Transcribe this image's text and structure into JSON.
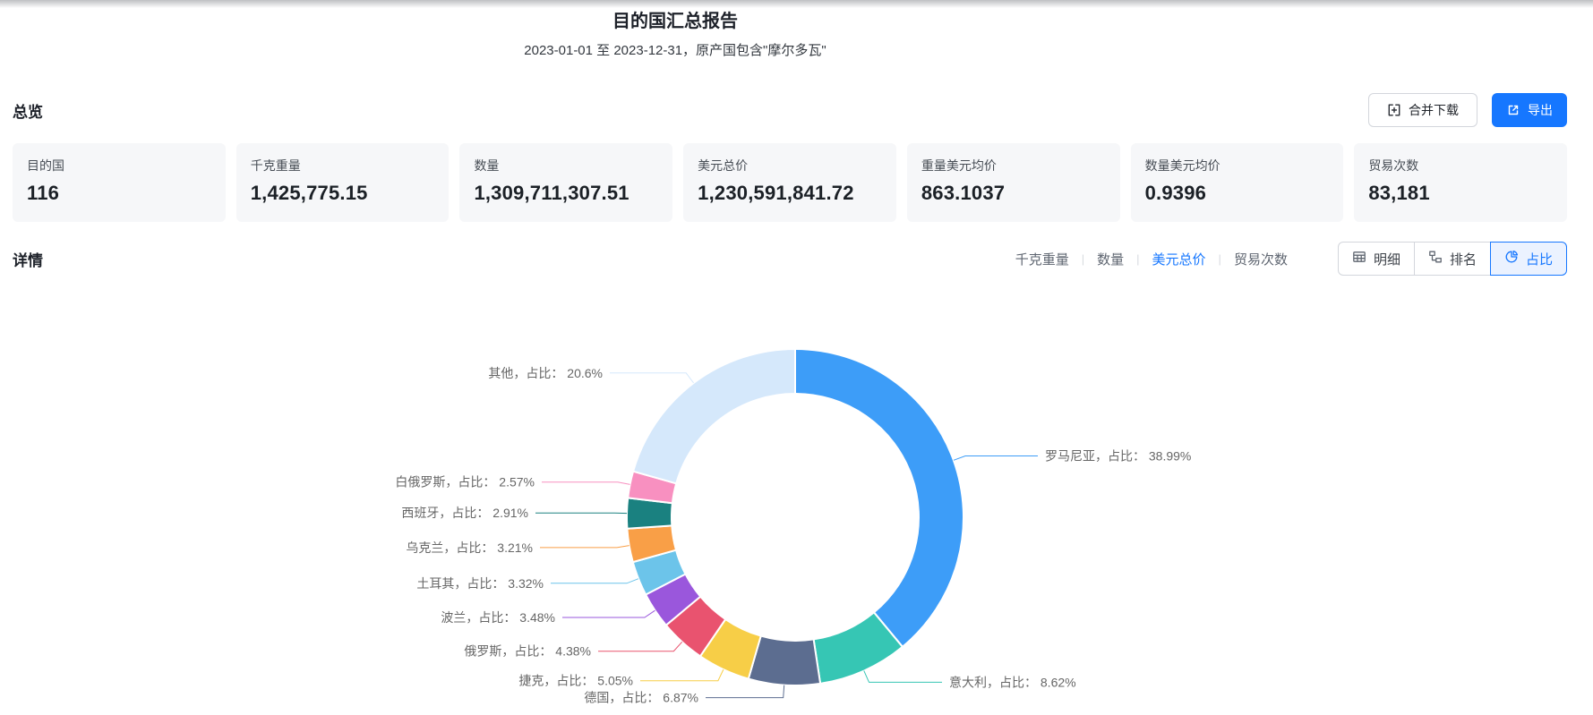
{
  "page": {
    "title": "目的国汇总报告",
    "subtitle": "2023-01-01 至 2023-12-31，原产国包含\"摩尔多瓦\""
  },
  "overview": {
    "heading": "总览",
    "buttons": {
      "merge_download": "合并下载",
      "export": "导出"
    },
    "stats": [
      {
        "label": "目的国",
        "value": "116"
      },
      {
        "label": "千克重量",
        "value": "1,425,775.15"
      },
      {
        "label": "数量",
        "value": "1,309,711,307.51"
      },
      {
        "label": "美元总价",
        "value": "1,230,591,841.72"
      },
      {
        "label": "重量美元均价",
        "value": "863.1037"
      },
      {
        "label": "数量美元均价",
        "value": "0.9396"
      },
      {
        "label": "贸易次数",
        "value": "83,181"
      }
    ]
  },
  "details": {
    "heading": "详情",
    "tab_separator": "|",
    "metric_tabs": [
      {
        "label": "千克重量",
        "active": false
      },
      {
        "label": "数量",
        "active": false
      },
      {
        "label": "美元总价",
        "active": true
      },
      {
        "label": "贸易次数",
        "active": false
      }
    ],
    "view_buttons": [
      {
        "label": "明细",
        "icon": "table-icon",
        "active": false
      },
      {
        "label": "排名",
        "icon": "ranking-icon",
        "active": false
      },
      {
        "label": "占比",
        "icon": "pie-icon",
        "active": true
      }
    ]
  },
  "colors": {
    "accent": "#1677ff"
  },
  "chart_data": {
    "type": "pie",
    "label_format": "{name}，占比： {value}%",
    "legend_position": "none",
    "donut": true,
    "slices": [
      {
        "name": "罗马尼亚",
        "value": 38.99,
        "color": "#3D9DF8"
      },
      {
        "name": "意大利",
        "value": 8.62,
        "color": "#36C6B4"
      },
      {
        "name": "德国",
        "value": 6.87,
        "color": "#5C6D90"
      },
      {
        "name": "捷克",
        "value": 5.05,
        "color": "#F7CE47"
      },
      {
        "name": "俄罗斯",
        "value": 4.38,
        "color": "#E9536F"
      },
      {
        "name": "波兰",
        "value": 3.48,
        "color": "#9A57DC"
      },
      {
        "name": "土耳其",
        "value": 3.32,
        "color": "#6CC4EA"
      },
      {
        "name": "乌克兰",
        "value": 3.21,
        "color": "#F99F47"
      },
      {
        "name": "西班牙",
        "value": 2.91,
        "color": "#1A8180"
      },
      {
        "name": "白俄罗斯",
        "value": 2.57,
        "color": "#F890C0"
      },
      {
        "name": "其他",
        "value": 20.6,
        "color": "#D5E8FB"
      }
    ]
  }
}
